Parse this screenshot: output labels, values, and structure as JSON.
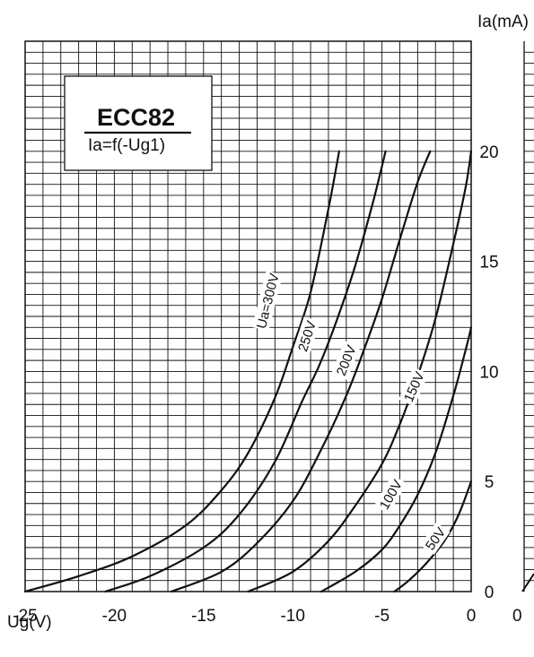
{
  "chart_data": {
    "type": "line",
    "title": "ECC82",
    "subtitle": "Ia=f(-Ug1)",
    "xlabel": "Ug(V)",
    "ylabel": "Ia(mA)",
    "xlim": [
      -25,
      0
    ],
    "ylim": [
      0,
      25
    ],
    "grid": true,
    "x_ticks": [
      -25,
      -20,
      -15,
      -10,
      -5,
      0
    ],
    "y_ticks": [
      0,
      5,
      10,
      15,
      20
    ],
    "series": [
      {
        "name": "Ua=300V",
        "points": [
          [
            -25,
            0
          ],
          [
            -22,
            0.7
          ],
          [
            -19,
            1.6
          ],
          [
            -16,
            3.0
          ],
          [
            -14,
            4.6
          ],
          [
            -12.5,
            6.3
          ],
          [
            -11,
            8.8
          ],
          [
            -10,
            11.1
          ],
          [
            -9,
            13.6
          ],
          [
            -8,
            17.4
          ],
          [
            -7.4,
            20
          ]
        ]
      },
      {
        "name": "250V",
        "points": [
          [
            -20.5,
            0
          ],
          [
            -18,
            0.7
          ],
          [
            -15,
            2.0
          ],
          [
            -13,
            3.5
          ],
          [
            -11,
            5.9
          ],
          [
            -9.5,
            8.6
          ],
          [
            -8.5,
            10.3
          ],
          [
            -7.5,
            12.4
          ],
          [
            -6.5,
            14.8
          ],
          [
            -5.5,
            17.7
          ],
          [
            -4.8,
            20
          ]
        ]
      },
      {
        "name": "200V",
        "points": [
          [
            -16.8,
            0
          ],
          [
            -14,
            0.9
          ],
          [
            -12,
            2.2
          ],
          [
            -10,
            4.1
          ],
          [
            -8.5,
            6.3
          ],
          [
            -7,
            8.9
          ],
          [
            -6,
            11.0
          ],
          [
            -5,
            13.3
          ],
          [
            -4,
            16.0
          ],
          [
            -3,
            18.6
          ],
          [
            -2.3,
            20
          ]
        ]
      },
      {
        "name": "150V",
        "points": [
          [
            -12.5,
            0
          ],
          [
            -10,
            0.9
          ],
          [
            -8,
            2.3
          ],
          [
            -6.5,
            3.9
          ],
          [
            -5,
            5.8
          ],
          [
            -4,
            7.6
          ],
          [
            -3,
            9.8
          ],
          [
            -2,
            12.4
          ],
          [
            -1,
            15.8
          ],
          [
            -0.3,
            18.4
          ],
          [
            0,
            20
          ]
        ]
      },
      {
        "name": "100V",
        "points": [
          [
            -8.4,
            0
          ],
          [
            -6.5,
            0.9
          ],
          [
            -5,
            1.9
          ],
          [
            -4,
            3.0
          ],
          [
            -3,
            4.4
          ],
          [
            -2,
            6.3
          ],
          [
            -1,
            8.9
          ],
          [
            -0.3,
            11.0
          ],
          [
            0,
            12
          ]
        ]
      },
      {
        "name": "50V",
        "points": [
          [
            -4.3,
            0
          ],
          [
            -3.5,
            0.5
          ],
          [
            -2.5,
            1.3
          ],
          [
            -1.5,
            2.3
          ],
          [
            -0.7,
            3.5
          ],
          [
            0,
            5
          ]
        ]
      }
    ],
    "curve_labels": [
      "Ua=300V",
      "250V",
      "200V",
      "150V",
      "100V",
      "50V"
    ]
  }
}
